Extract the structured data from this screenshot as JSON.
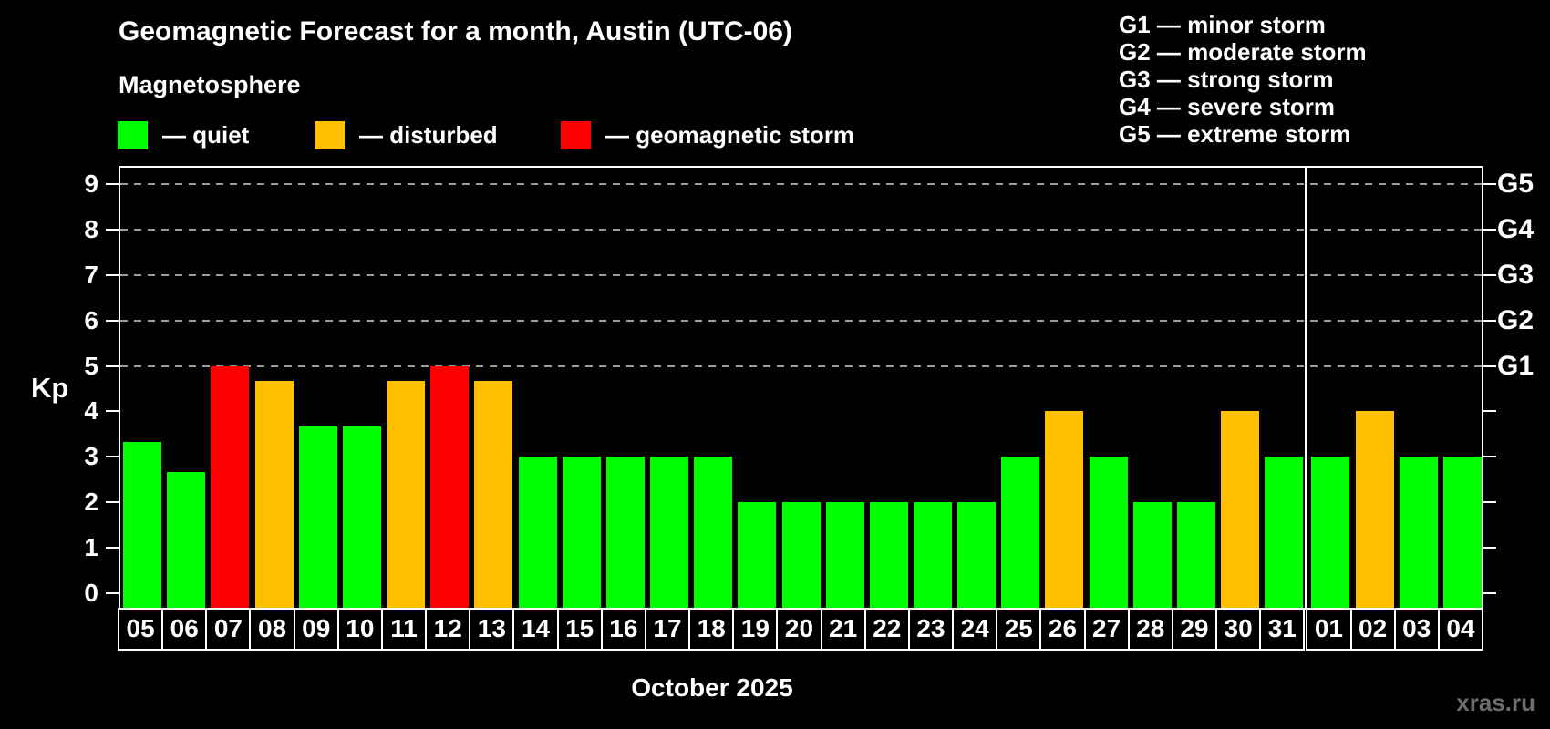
{
  "page": {
    "background": "#000000",
    "watermark": "xras.ru",
    "watermark_color": "#6e6e6e"
  },
  "chart_data": {
    "type": "bar",
    "title": "Geomagnetic Forecast for a month, Austin (UTC-06)",
    "subtitle": "Magnetosphere",
    "ylabel": "Kp",
    "xlabel": "October 2025",
    "ylim": [
      0,
      9
    ],
    "yticks": [
      0,
      1,
      2,
      3,
      4,
      5,
      6,
      7,
      8,
      9
    ],
    "grid_levels": [
      5,
      6,
      7,
      8,
      9
    ],
    "grid_color": "#9c9c9c",
    "axis_color": "#ffffff",
    "legend_position": "top",
    "categories": [
      "05",
      "06",
      "07",
      "08",
      "09",
      "10",
      "11",
      "12",
      "13",
      "14",
      "15",
      "16",
      "17",
      "18",
      "19",
      "20",
      "21",
      "22",
      "23",
      "24",
      "25",
      "26",
      "27",
      "28",
      "29",
      "30",
      "31",
      "01",
      "02",
      "03",
      "04"
    ],
    "values": [
      3.33,
      2.67,
      5,
      4.67,
      3.67,
      3.67,
      4.67,
      5,
      4.67,
      3,
      3,
      3,
      3,
      3,
      2,
      2,
      2,
      2,
      2,
      2,
      3,
      4,
      3,
      2,
      2,
      4,
      3,
      3,
      4,
      3,
      3
    ],
    "statuses": [
      "quiet",
      "quiet",
      "storm",
      "disturbed",
      "quiet",
      "quiet",
      "disturbed",
      "storm",
      "disturbed",
      "quiet",
      "quiet",
      "quiet",
      "quiet",
      "quiet",
      "quiet",
      "quiet",
      "quiet",
      "quiet",
      "quiet",
      "quiet",
      "quiet",
      "disturbed",
      "quiet",
      "quiet",
      "quiet",
      "disturbed",
      "quiet",
      "quiet",
      "disturbed",
      "quiet",
      "quiet"
    ],
    "month_boundary_index": 27,
    "colors": {
      "quiet": "#00ff00",
      "disturbed": "#ffc000",
      "storm": "#ff0000"
    },
    "legend": [
      {
        "status": "quiet",
        "label": "— quiet"
      },
      {
        "status": "disturbed",
        "label": "— disturbed"
      },
      {
        "status": "storm",
        "label": "— geomagnetic storm"
      }
    ],
    "right_axis_labels": [
      {
        "kp": 5,
        "label": "G1"
      },
      {
        "kp": 6,
        "label": "G2"
      },
      {
        "kp": 7,
        "label": "G3"
      },
      {
        "kp": 8,
        "label": "G4"
      },
      {
        "kp": 9,
        "label": "G5"
      }
    ],
    "storm_scale": [
      "G1 — minor storm",
      "G2 — moderate storm",
      "G3 — strong storm",
      "G4 — severe storm",
      "G5 — extreme storm"
    ]
  }
}
